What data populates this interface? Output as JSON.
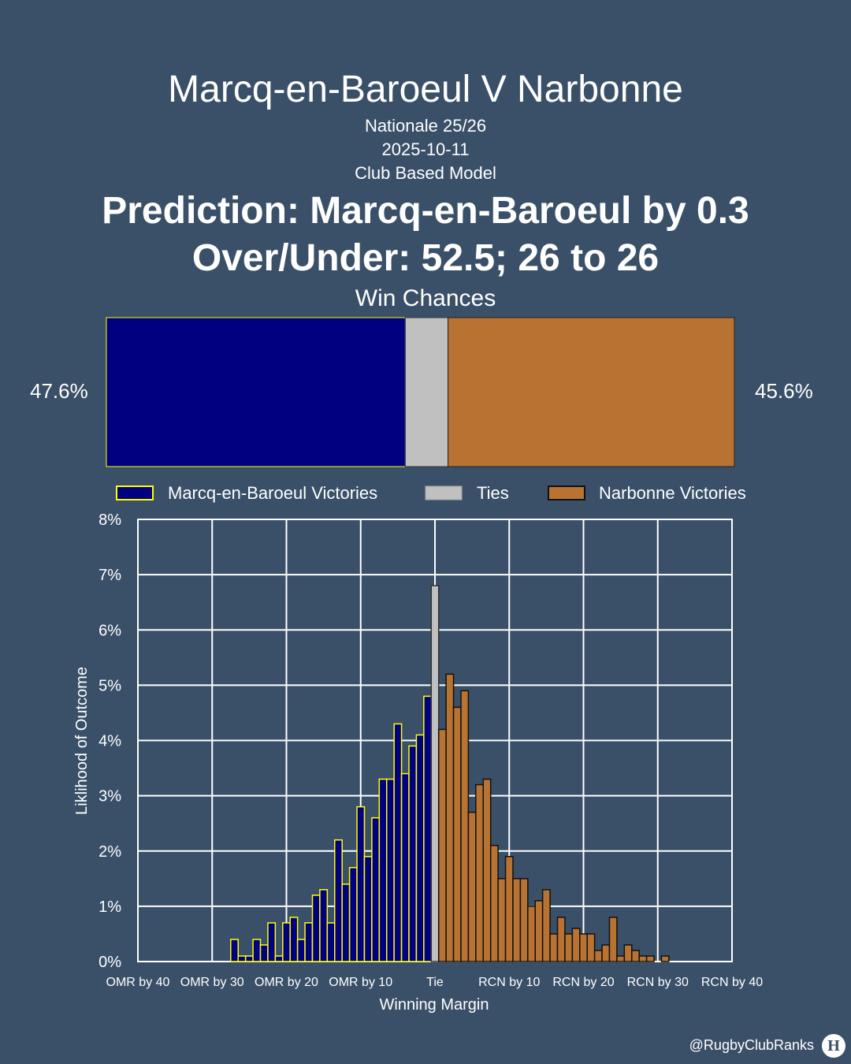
{
  "header": {
    "title": "Marcq-en-Baroeul V Narbonne",
    "league": "Nationale 25/26",
    "date": "2025-10-11",
    "model": "Club Based Model",
    "prediction": "Prediction: Marcq-en-Baroeul by 0.3",
    "over_under": "Over/Under: 52.5; 26 to 26"
  },
  "win_chances": {
    "title": "Win Chances",
    "home_pct_label": "47.6%",
    "away_pct_label": "45.6%",
    "home": 47.6,
    "tie": 6.8,
    "away": 45.6,
    "colors": {
      "home": "#000080",
      "tie": "#c0c0c0",
      "away": "#b87333",
      "home_edge": "#ffff00"
    }
  },
  "legend": {
    "home": "Marcq-en-Baroeul Victories",
    "tie": "Ties",
    "away": "Narbonne Victories"
  },
  "chart_data": {
    "type": "bar",
    "xlabel": "Winning Margin",
    "ylabel": "Liklihood of Outcome",
    "xlim": [
      -40,
      40
    ],
    "ylim": [
      0,
      8
    ],
    "grid": true,
    "y_ticks": [
      "0%",
      "1%",
      "2%",
      "3%",
      "4%",
      "5%",
      "6%",
      "7%",
      "8%"
    ],
    "x_ticks": [
      {
        "v": -40,
        "label": "OMR by 40"
      },
      {
        "v": -30,
        "label": "OMR by 30"
      },
      {
        "v": -20,
        "label": "OMR by 20"
      },
      {
        "v": -10,
        "label": "OMR by 10"
      },
      {
        "v": 0,
        "label": "Tie"
      },
      {
        "v": 10,
        "label": "RCN by 10"
      },
      {
        "v": 20,
        "label": "RCN by 20"
      },
      {
        "v": 30,
        "label": "RCN by 30"
      },
      {
        "v": 40,
        "label": "RCN by 40"
      }
    ],
    "series": [
      {
        "name": "Marcq-en-Baroeul Victories",
        "x": [
          -27,
          -26,
          -25,
          -24,
          -23,
          -22,
          -21,
          -20,
          -19,
          -18,
          -17,
          -16,
          -15,
          -14,
          -13,
          -12,
          -11,
          -10,
          -9,
          -8,
          -7,
          -6,
          -5,
          -4,
          -3,
          -2,
          -1
        ],
        "values": [
          0.4,
          0.1,
          0.1,
          0.4,
          0.3,
          0.7,
          0.1,
          0.7,
          0.8,
          0.4,
          0.7,
          1.2,
          1.3,
          0.7,
          2.2,
          1.4,
          1.7,
          2.8,
          1.9,
          2.6,
          3.3,
          3.3,
          4.3,
          3.4,
          3.9,
          4.1,
          4.8
        ]
      },
      {
        "name": "Ties",
        "x": [
          0
        ],
        "values": [
          6.8
        ]
      },
      {
        "name": "Narbonne Victories",
        "x": [
          1,
          2,
          3,
          4,
          5,
          6,
          7,
          8,
          9,
          10,
          11,
          12,
          13,
          14,
          15,
          16,
          17,
          18,
          19,
          20,
          21,
          22,
          23,
          24,
          25,
          26,
          27,
          28,
          29,
          31
        ],
        "values": [
          4.2,
          5.2,
          4.6,
          4.9,
          2.7,
          3.2,
          3.3,
          2.1,
          1.5,
          1.9,
          1.5,
          1.5,
          1.0,
          1.1,
          1.3,
          0.5,
          0.8,
          0.5,
          0.6,
          0.5,
          0.5,
          0.2,
          0.3,
          0.8,
          0.1,
          0.3,
          0.2,
          0.1,
          0.1,
          0.1
        ]
      }
    ]
  },
  "footer": {
    "credit": "@RugbyClubRanks"
  }
}
